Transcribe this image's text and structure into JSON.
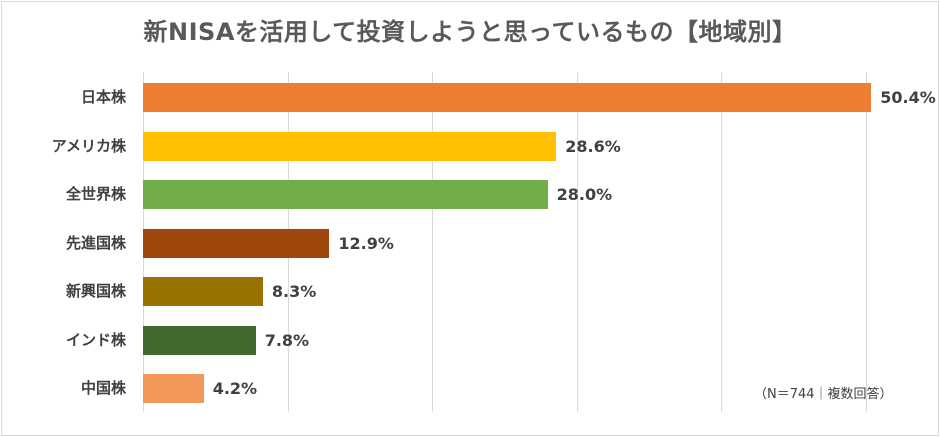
{
  "title": "新NISAを活用して投資しようと思っているもの【地域別】",
  "note": "（N＝744｜複数回答）",
  "chart_data": {
    "type": "bar",
    "orientation": "horizontal",
    "title": "新NISAを活用して投資しようと思っているもの【地域別】",
    "categories": [
      "日本株",
      "アメリカ株",
      "全世界株",
      "先進国株",
      "新興国株",
      "インド株",
      "中国株"
    ],
    "values": [
      50.4,
      28.6,
      28.0,
      12.9,
      8.3,
      7.8,
      4.2
    ],
    "labels": [
      "50.4%",
      "28.6%",
      "28.0%",
      "12.9%",
      "8.3%",
      "7.8%",
      "4.2%"
    ],
    "colors": [
      "#ED7D31",
      "#FFC000",
      "#70AD47",
      "#9E480E",
      "#997300",
      "#43682B",
      "#F1975A"
    ],
    "unit": "%",
    "xlabel": "",
    "ylabel": "",
    "xlim": [
      0,
      50
    ],
    "gridlines_x": [
      0,
      10,
      20,
      30,
      40,
      50
    ],
    "grid": true,
    "legend": "none",
    "annotation": "（N＝744｜複数回答）"
  }
}
